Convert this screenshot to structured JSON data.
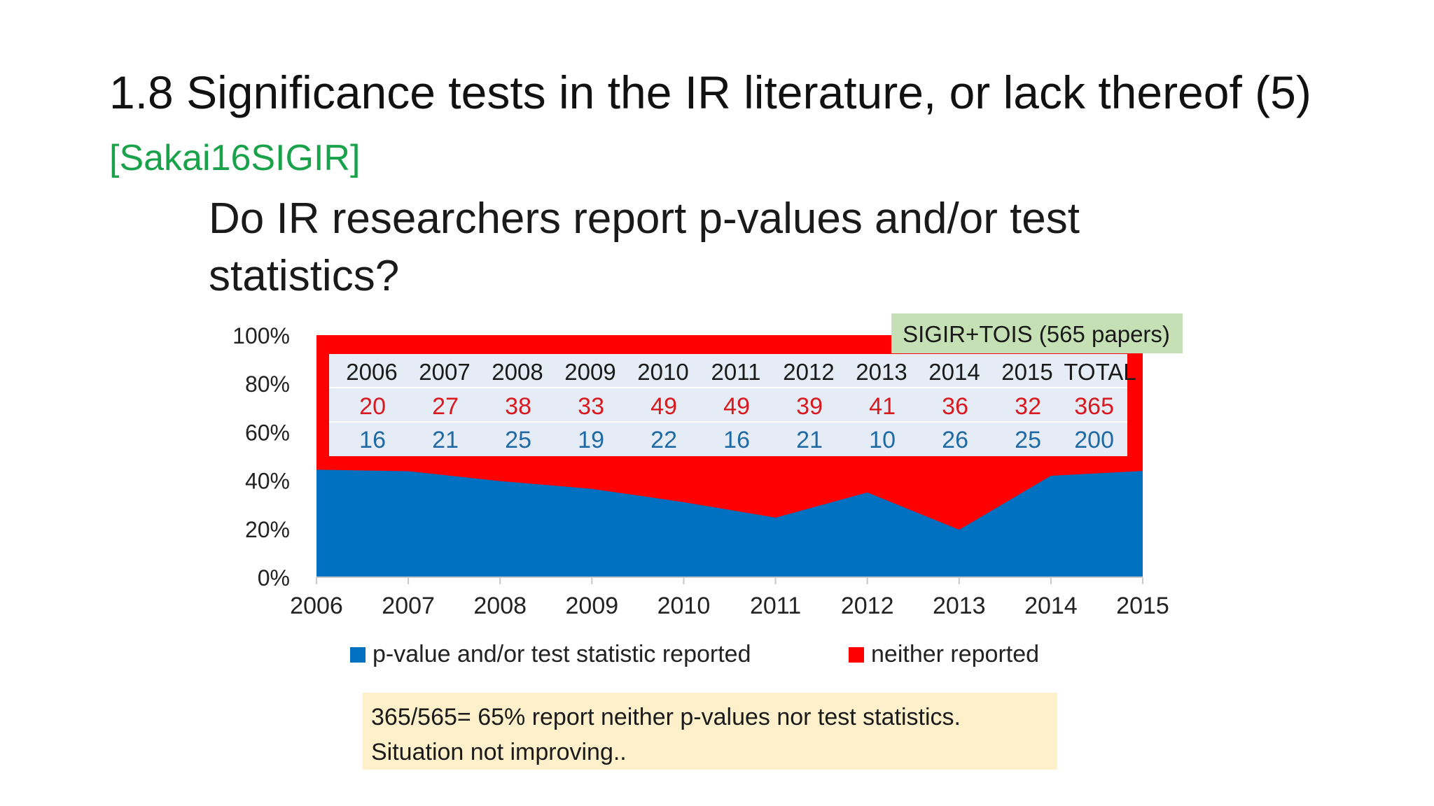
{
  "slide": {
    "title_main": "1.8 Significance tests in the IR literature, or lack thereof (5)",
    "citation": "[Sakai16SIGIR]",
    "question": "Do IR researchers report p-values and/or test statistics?",
    "callout_line1": "365/565= 65% report neither p-values nor test statistics.",
    "callout_line2": "Situation not improving.."
  },
  "colors": {
    "reported": "#0070c0",
    "neither": "#ff0000",
    "table_bg": "#e6ecf5",
    "tag_bg": "#c5e0b4",
    "table_red_text": "#d71920",
    "table_blue_text": "#1f6aa5"
  },
  "chart_data": {
    "type": "area",
    "stacked": true,
    "x": [
      "2006",
      "2007",
      "2008",
      "2009",
      "2010",
      "2011",
      "2012",
      "2013",
      "2014",
      "2015"
    ],
    "series": [
      {
        "name": "p-value and/or test statistic reported",
        "values": [
          44.4,
          43.8,
          39.7,
          36.5,
          31.0,
          24.6,
          35.0,
          19.6,
          41.9,
          43.9
        ]
      },
      {
        "name": "neither reported",
        "values": [
          55.6,
          56.2,
          60.3,
          63.5,
          69.0,
          75.4,
          65.0,
          80.4,
          58.1,
          56.1
        ]
      }
    ],
    "y_ticks": [
      "0%",
      "20%",
      "40%",
      "60%",
      "80%",
      "100%"
    ],
    "ylim": [
      0,
      100
    ],
    "tag": "SIGIR+TOIS (565 papers)",
    "table": {
      "headers": [
        "2006",
        "2007",
        "2008",
        "2009",
        "2010",
        "2011",
        "2012",
        "2013",
        "2014",
        "2015",
        "TOTAL"
      ],
      "neither_counts": [
        "20",
        "27",
        "38",
        "33",
        "49",
        "49",
        "39",
        "41",
        "36",
        "32",
        "365"
      ],
      "reported_counts": [
        "16",
        "21",
        "25",
        "19",
        "22",
        "16",
        "21",
        "10",
        "26",
        "25",
        "200"
      ]
    }
  }
}
